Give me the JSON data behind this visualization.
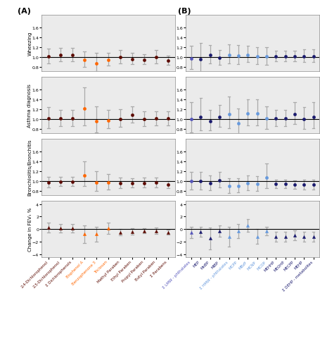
{
  "panel_A_title": "(A)",
  "panel_B_title": "(B)",
  "row_labels": [
    "Wheezing",
    "Asthma diagnosis",
    "Bronchiolitis/Bronchitis",
    "Change in FEV₁ %"
  ],
  "A_xlabels": [
    "2,4-Dichlorophenol",
    "2,5-Dichlorophenol",
    "Σ Dichlorophenols",
    "Bisphenol A",
    "Benzophenone 3",
    "Triclosan",
    "Methyl Paraben",
    "Ethyl Paraben",
    "Propyl Paraben",
    "Butyl Paraben",
    "Σ Parabens"
  ],
  "B_xlabels": [
    "Σ LMW - phthalates",
    "MEP",
    "MnBP",
    "MiBP",
    "Σ HMW - phthalates",
    "MCPP",
    "MBzP",
    "MCNP",
    "MCOP",
    "MEHHP",
    "MEOHP",
    "MECPP",
    "MEHP",
    "Σ DEHP - metabolites"
  ],
  "A_dot_colors": [
    "#5C0A00",
    "#5C0A00",
    "#5C0A00",
    "#FF6600",
    "#FF6600",
    "#FF6600",
    "#5C0A00",
    "#5C0A00",
    "#5C0A00",
    "#5C0A00",
    "#5C0A00"
  ],
  "A_label_colors": [
    "#5C0A00",
    "#5C0A00",
    "#5C0A00",
    "#FF6600",
    "#FF6600",
    "#FF6600",
    "#5C0A00",
    "#5C0A00",
    "#5C0A00",
    "#5C0A00",
    "#5C0A00"
  ],
  "B_dot_colors": [
    "#5555BB",
    "#1a1a6e",
    "#1a1a6e",
    "#1a1a6e",
    "#6699DD",
    "#6699DD",
    "#6699DD",
    "#6699DD",
    "#6699DD",
    "#1a1a6e",
    "#1a1a6e",
    "#1a1a6e",
    "#1a1a6e",
    "#1a1a6e"
  ],
  "B_label_colors": [
    "#5555BB",
    "#1a1a6e",
    "#1a1a6e",
    "#1a1a6e",
    "#6699DD",
    "#6699DD",
    "#6699DD",
    "#6699DD",
    "#6699DD",
    "#1a1a6e",
    "#1a1a6e",
    "#1a1a6e",
    "#1a1a6e",
    "#1a1a6e"
  ],
  "A_wheezing_est": [
    1.02,
    1.04,
    1.04,
    0.95,
    0.88,
    0.95,
    1.0,
    0.96,
    0.95,
    1.0,
    0.93
  ],
  "A_wheezing_lo": [
    0.88,
    0.91,
    0.91,
    0.8,
    0.72,
    0.83,
    0.88,
    0.86,
    0.86,
    0.88,
    0.84
  ],
  "A_wheezing_hi": [
    1.17,
    1.18,
    1.18,
    1.12,
    1.08,
    1.09,
    1.14,
    1.08,
    1.06,
    1.14,
    1.03
  ],
  "A_asthma_est": [
    1.01,
    1.01,
    1.01,
    1.21,
    0.96,
    0.98,
    1.0,
    1.08,
    1.0,
    1.01,
    1.01
  ],
  "A_asthma_lo": [
    0.82,
    0.86,
    0.86,
    0.88,
    0.74,
    0.82,
    0.84,
    0.93,
    0.86,
    0.88,
    0.88
  ],
  "A_asthma_hi": [
    1.24,
    1.18,
    1.18,
    1.64,
    1.25,
    1.18,
    1.2,
    1.25,
    1.16,
    1.16,
    1.16
  ],
  "A_bronch_est": [
    0.98,
    0.99,
    0.99,
    1.12,
    0.98,
    0.98,
    0.96,
    0.96,
    0.96,
    0.97,
    0.93
  ],
  "A_bronch_lo": [
    0.88,
    0.9,
    0.9,
    0.9,
    0.8,
    0.84,
    0.86,
    0.87,
    0.87,
    0.87,
    0.86
  ],
  "A_bronch_hi": [
    1.09,
    1.09,
    1.09,
    1.4,
    1.2,
    1.14,
    1.08,
    1.06,
    1.07,
    1.08,
    1.01
  ],
  "A_fev_est": [
    0.2,
    0.1,
    0.1,
    -0.8,
    -0.8,
    0.1,
    -0.5,
    -0.4,
    -0.3,
    -0.3,
    -0.5
  ],
  "A_fev_lo": [
    -0.6,
    -0.55,
    -0.55,
    -2.2,
    -2.0,
    -0.8,
    -1.0,
    -0.9,
    -0.7,
    -0.8,
    -0.9
  ],
  "A_fev_hi": [
    1.0,
    0.8,
    0.8,
    0.6,
    0.4,
    1.0,
    0.05,
    0.1,
    0.1,
    0.2,
    -0.1
  ],
  "B_wheezing_est": [
    0.97,
    0.96,
    1.04,
    0.98,
    1.05,
    1.03,
    1.05,
    1.02,
    1.01,
    1.02,
    1.02,
    1.02,
    1.02,
    1.02
  ],
  "B_wheezing_lo": [
    0.76,
    0.68,
    0.88,
    0.84,
    0.88,
    0.86,
    0.9,
    0.86,
    0.84,
    0.92,
    0.92,
    0.92,
    0.9,
    0.9
  ],
  "B_wheezing_hi": [
    1.22,
    1.28,
    1.24,
    1.14,
    1.26,
    1.24,
    1.22,
    1.2,
    1.2,
    1.13,
    1.13,
    1.13,
    1.15,
    1.15
  ],
  "B_asthma_est": [
    1.0,
    1.05,
    0.96,
    1.04,
    1.1,
    0.92,
    1.12,
    1.12,
    1.02,
    1.01,
    1.01,
    1.1,
    1.0,
    1.05
  ],
  "B_asthma_lo": [
    0.74,
    0.78,
    0.78,
    0.84,
    0.82,
    0.68,
    0.88,
    0.88,
    0.8,
    0.86,
    0.86,
    0.9,
    0.8,
    0.82
  ],
  "B_asthma_hi": [
    1.34,
    1.42,
    1.18,
    1.28,
    1.46,
    1.22,
    1.4,
    1.4,
    1.26,
    1.18,
    1.18,
    1.34,
    1.24,
    1.34
  ],
  "B_bronch_est": [
    1.0,
    1.0,
    0.96,
    1.02,
    0.9,
    0.9,
    0.96,
    0.94,
    1.08,
    0.94,
    0.94,
    0.93,
    0.93,
    0.93
  ],
  "B_bronch_lo": [
    0.84,
    0.84,
    0.82,
    0.88,
    0.76,
    0.78,
    0.82,
    0.8,
    0.86,
    0.86,
    0.86,
    0.85,
    0.84,
    0.84
  ],
  "B_bronch_hi": [
    1.18,
    1.18,
    1.12,
    1.18,
    1.06,
    1.06,
    1.12,
    1.1,
    1.36,
    1.03,
    1.03,
    1.02,
    1.03,
    1.03
  ],
  "B_fev_est": [
    -0.5,
    -0.4,
    -1.5,
    -0.3,
    -1.2,
    -0.3,
    0.6,
    -1.2,
    -0.3,
    -1.2,
    -1.2,
    -1.0,
    -1.2,
    -1.2
  ],
  "B_fev_lo": [
    -1.4,
    -1.2,
    -3.2,
    -1.2,
    -2.8,
    -1.4,
    -0.4,
    -2.4,
    -1.0,
    -2.0,
    -2.0,
    -1.8,
    -2.0,
    -2.0
  ],
  "B_fev_hi": [
    0.4,
    0.4,
    0.2,
    0.6,
    0.4,
    0.8,
    1.6,
    0.0,
    0.4,
    -0.4,
    -0.4,
    -0.2,
    -0.4,
    -0.4
  ],
  "ylim_or": [
    0.72,
    1.85
  ],
  "ylim_fev": [
    -4.5,
    4.5
  ],
  "yticks_or": [
    0.8,
    1.0,
    1.2,
    1.4,
    1.6
  ],
  "yticks_fev": [
    -4,
    -2,
    0,
    2,
    4
  ],
  "bg_color": "#EBEBEB",
  "ref_line_color": "#000000",
  "err_color": "#AAAAAA"
}
